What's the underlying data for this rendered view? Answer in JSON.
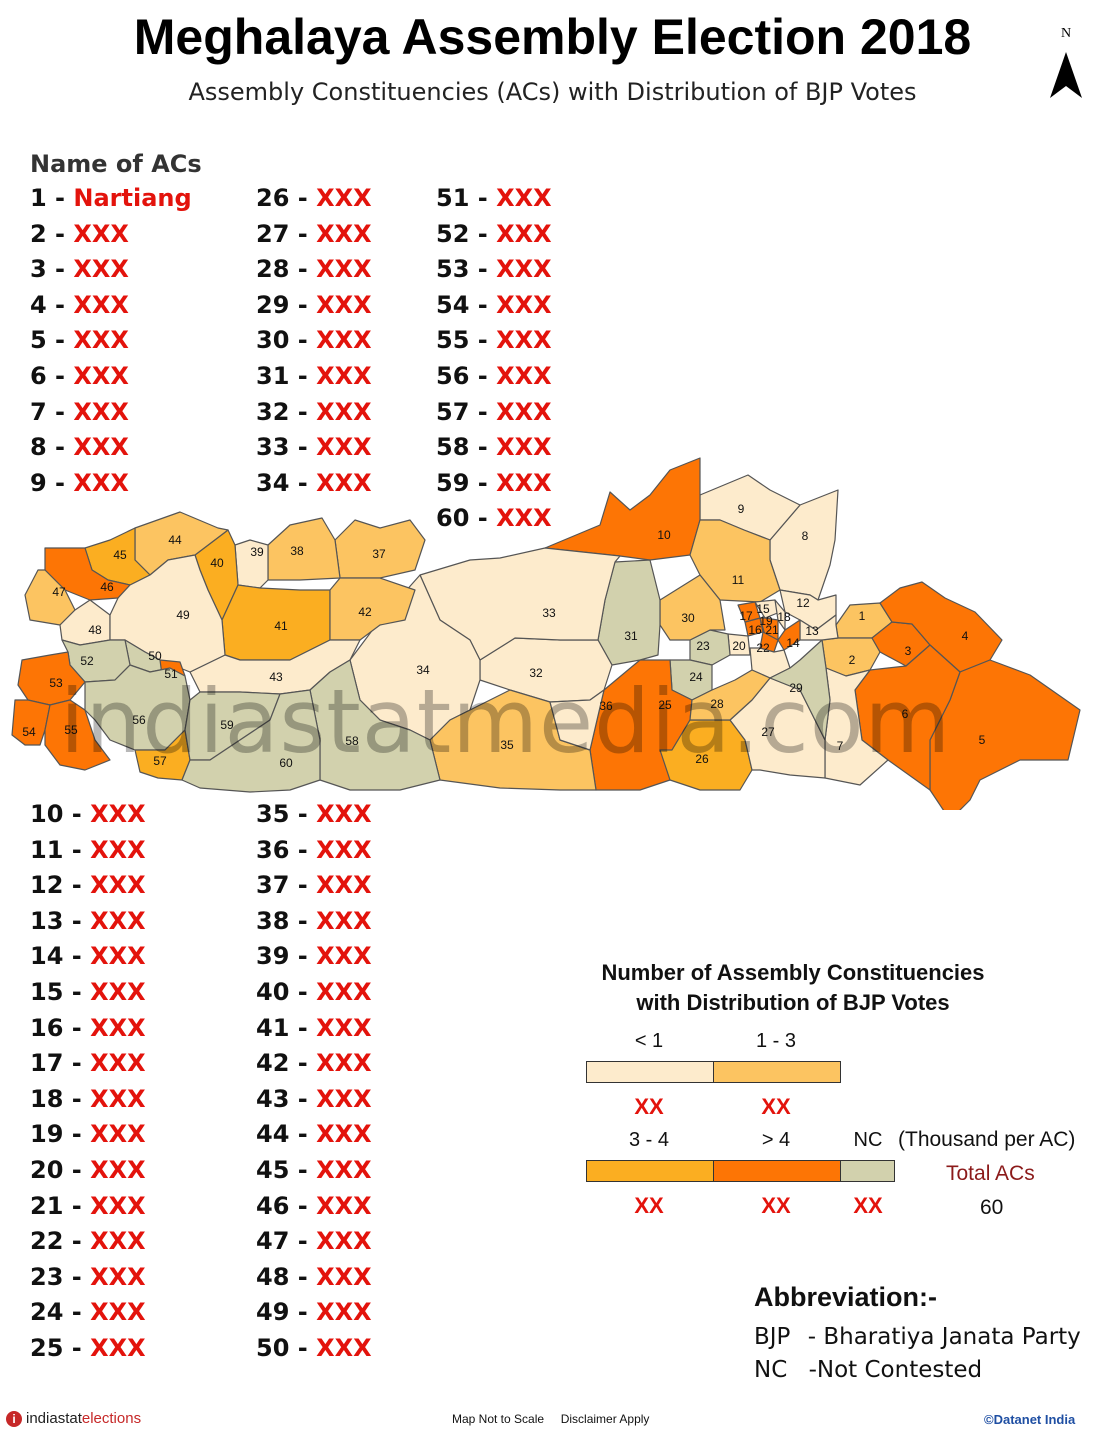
{
  "title": "Meghalaya Assembly Election 2018",
  "subtitle": "Assembly Constituencies (ACs) with Distribution of BJP Votes",
  "north_label": "N",
  "list_heading": "Name of ACs",
  "constituency_list": {
    "col1": [
      {
        "no": "1",
        "name": "Nartiang"
      },
      {
        "no": "2",
        "name": "XXX"
      },
      {
        "no": "3",
        "name": "XXX"
      },
      {
        "no": "4",
        "name": "XXX"
      },
      {
        "no": "5",
        "name": "XXX"
      },
      {
        "no": "6",
        "name": "XXX"
      },
      {
        "no": "7",
        "name": "XXX"
      },
      {
        "no": "8",
        "name": "XXX"
      },
      {
        "no": "9",
        "name": "XXX"
      }
    ],
    "col2": [
      {
        "no": "26",
        "name": "XXX"
      },
      {
        "no": "27",
        "name": "XXX"
      },
      {
        "no": "28",
        "name": "XXX"
      },
      {
        "no": "29",
        "name": "XXX"
      },
      {
        "no": "30",
        "name": "XXX"
      },
      {
        "no": "31",
        "name": "XXX"
      },
      {
        "no": "32",
        "name": "XXX"
      },
      {
        "no": "33",
        "name": "XXX"
      },
      {
        "no": "34",
        "name": "XXX"
      }
    ],
    "col3": [
      {
        "no": "51",
        "name": "XXX"
      },
      {
        "no": "52",
        "name": "XXX"
      },
      {
        "no": "53",
        "name": "XXX"
      },
      {
        "no": "54",
        "name": "XXX"
      },
      {
        "no": "55",
        "name": "XXX"
      },
      {
        "no": "56",
        "name": "XXX"
      },
      {
        "no": "57",
        "name": "XXX"
      },
      {
        "no": "58",
        "name": "XXX"
      },
      {
        "no": "59",
        "name": "XXX"
      },
      {
        "no": "60",
        "name": "XXX"
      }
    ],
    "col4": [
      {
        "no": "10",
        "name": "XXX"
      },
      {
        "no": "11",
        "name": "XXX"
      },
      {
        "no": "12",
        "name": "XXX"
      },
      {
        "no": "13",
        "name": "XXX"
      },
      {
        "no": "14",
        "name": "XXX"
      },
      {
        "no": "15",
        "name": "XXX"
      },
      {
        "no": "16",
        "name": "XXX"
      },
      {
        "no": "17",
        "name": "XXX"
      },
      {
        "no": "18",
        "name": "XXX"
      },
      {
        "no": "19",
        "name": "XXX"
      },
      {
        "no": "20",
        "name": "XXX"
      },
      {
        "no": "21",
        "name": "XXX"
      },
      {
        "no": "22",
        "name": "XXX"
      },
      {
        "no": "23",
        "name": "XXX"
      },
      {
        "no": "24",
        "name": "XXX"
      },
      {
        "no": "25",
        "name": "XXX"
      }
    ],
    "col5": [
      {
        "no": "35",
        "name": "XXX"
      },
      {
        "no": "36",
        "name": "XXX"
      },
      {
        "no": "37",
        "name": "XXX"
      },
      {
        "no": "38",
        "name": "XXX"
      },
      {
        "no": "39",
        "name": "XXX"
      },
      {
        "no": "40",
        "name": "XXX"
      },
      {
        "no": "41",
        "name": "XXX"
      },
      {
        "no": "42",
        "name": "XXX"
      },
      {
        "no": "43",
        "name": "XXX"
      },
      {
        "no": "44",
        "name": "XXX"
      },
      {
        "no": "45",
        "name": "XXX"
      },
      {
        "no": "46",
        "name": "XXX"
      },
      {
        "no": "47",
        "name": "XXX"
      },
      {
        "no": "48",
        "name": "XXX"
      },
      {
        "no": "49",
        "name": "XXX"
      },
      {
        "no": "50",
        "name": "XXX"
      }
    ]
  },
  "legend": {
    "title_line1": "Number of Assembly Constituencies",
    "title_line2": "with Distribution of BJP Votes",
    "classes": [
      {
        "id": "lt1",
        "label": "< 1",
        "color": "#fdebcc",
        "count": "XX"
      },
      {
        "id": "1to3",
        "label": "1 - 3",
        "color": "#fcc461",
        "count": "XX"
      },
      {
        "id": "3to4",
        "label": "3 - 4",
        "color": "#fbae21",
        "count": "XX"
      },
      {
        "id": "gt4",
        "label": "> 4",
        "color": "#fd7505",
        "count": "XX"
      },
      {
        "id": "nc",
        "label": "NC",
        "color": "#d2d1ad",
        "count": "XX"
      }
    ],
    "unit": "(Thousand per AC)",
    "total_label": "Total ACs",
    "total_value": "60"
  },
  "abbreviation": {
    "heading": "Abbreviation:-",
    "items": [
      {
        "abbr": "BJP",
        "meaning": "- Bharatiya Janata Party"
      },
      {
        "abbr": "NC",
        "meaning": "-Not Contested"
      }
    ]
  },
  "footer": {
    "logo_part1": "indiastat",
    "logo_part2": "elections",
    "middle": "Map Not to Scale     Disclaimer Apply",
    "copyright": "©Datanet India"
  },
  "watermark": {
    "part1": "indiastat",
    "part2": "media.com"
  },
  "map_constituencies": [
    {
      "no": "1",
      "cls": "1to3"
    },
    {
      "no": "2",
      "cls": "1to3"
    },
    {
      "no": "3",
      "cls": "gt4"
    },
    {
      "no": "4",
      "cls": "gt4"
    },
    {
      "no": "5",
      "cls": "gt4"
    },
    {
      "no": "6",
      "cls": "gt4"
    },
    {
      "no": "7",
      "cls": "lt1"
    },
    {
      "no": "8",
      "cls": "lt1"
    },
    {
      "no": "9",
      "cls": "lt1"
    },
    {
      "no": "10",
      "cls": "gt4"
    },
    {
      "no": "11",
      "cls": "1to3"
    },
    {
      "no": "12",
      "cls": "lt1"
    },
    {
      "no": "13",
      "cls": "lt1"
    },
    {
      "no": "14",
      "cls": "gt4"
    },
    {
      "no": "15",
      "cls": "lt1"
    },
    {
      "no": "16",
      "cls": "gt4"
    },
    {
      "no": "17",
      "cls": "gt4"
    },
    {
      "no": "18",
      "cls": "lt1"
    },
    {
      "no": "19",
      "cls": "gt4"
    },
    {
      "no": "20",
      "cls": "lt1"
    },
    {
      "no": "21",
      "cls": "gt4"
    },
    {
      "no": "22",
      "cls": "lt1"
    },
    {
      "no": "23",
      "cls": "nc"
    },
    {
      "no": "24",
      "cls": "nc"
    },
    {
      "no": "25",
      "cls": "gt4"
    },
    {
      "no": "26",
      "cls": "3to4"
    },
    {
      "no": "27",
      "cls": "lt1"
    },
    {
      "no": "28",
      "cls": "1to3"
    },
    {
      "no": "29",
      "cls": "nc"
    },
    {
      "no": "30",
      "cls": "1to3"
    },
    {
      "no": "31",
      "cls": "nc"
    },
    {
      "no": "32",
      "cls": "lt1"
    },
    {
      "no": "33",
      "cls": "lt1"
    },
    {
      "no": "34",
      "cls": "lt1"
    },
    {
      "no": "35",
      "cls": "1to3"
    },
    {
      "no": "36",
      "cls": "lt1"
    },
    {
      "no": "37",
      "cls": "1to3"
    },
    {
      "no": "38",
      "cls": "1to3"
    },
    {
      "no": "39",
      "cls": "lt1"
    },
    {
      "no": "40",
      "cls": "3to4"
    },
    {
      "no": "41",
      "cls": "3to4"
    },
    {
      "no": "42",
      "cls": "1to3"
    },
    {
      "no": "43",
      "cls": "lt1"
    },
    {
      "no": "44",
      "cls": "1to3"
    },
    {
      "no": "45",
      "cls": "3to4"
    },
    {
      "no": "46",
      "cls": "gt4"
    },
    {
      "no": "47",
      "cls": "1to3"
    },
    {
      "no": "48",
      "cls": "lt1"
    },
    {
      "no": "49",
      "cls": "lt1"
    },
    {
      "no": "50",
      "cls": "nc"
    },
    {
      "no": "51",
      "cls": "gt4"
    },
    {
      "no": "52",
      "cls": "nc"
    },
    {
      "no": "53",
      "cls": "gt4"
    },
    {
      "no": "54",
      "cls": "gt4"
    },
    {
      "no": "55",
      "cls": "gt4"
    },
    {
      "no": "56",
      "cls": "nc"
    },
    {
      "no": "57",
      "cls": "3to4"
    },
    {
      "no": "58",
      "cls": "nc"
    },
    {
      "no": "59",
      "cls": "nc"
    },
    {
      "no": "60",
      "cls": "nc"
    }
  ]
}
